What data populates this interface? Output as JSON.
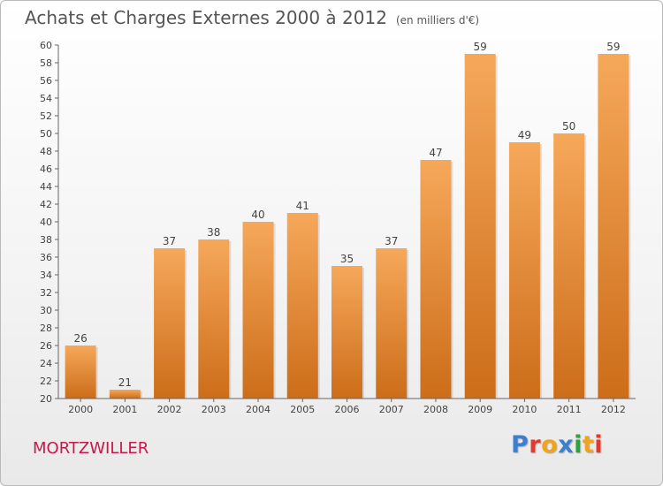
{
  "header": {
    "title": "Achats et Charges Externes 2000 à 2012",
    "unit_note": "(en milliers d'€)"
  },
  "footer": {
    "town": "MORTZWILLER",
    "logo_letters": [
      "P",
      "r",
      "o",
      "x",
      "i",
      "t",
      "i"
    ],
    "logo_colors": [
      "#3a7fd0",
      "#e23b2e",
      "#f1a31c",
      "#3a7fd0",
      "#2aa53c",
      "#f1a31c",
      "#e23b2e"
    ]
  },
  "chart_data": {
    "type": "bar",
    "title": "Achats et Charges Externes 2000 à 2012",
    "subtitle": "(en milliers d'€)",
    "categories": [
      "2000",
      "2001",
      "2002",
      "2003",
      "2004",
      "2005",
      "2006",
      "2007",
      "2008",
      "2009",
      "2010",
      "2011",
      "2012"
    ],
    "values": [
      26,
      21,
      37,
      38,
      40,
      41,
      35,
      37,
      47,
      59,
      49,
      50,
      59
    ],
    "ylim": [
      20,
      60
    ],
    "ytick_step": 2,
    "grid": false,
    "legend": "none",
    "colors": {
      "bar_top": "#f6a85a",
      "bar_bottom": "#cc6d19",
      "axis": "#666666",
      "text": "#444444"
    }
  }
}
